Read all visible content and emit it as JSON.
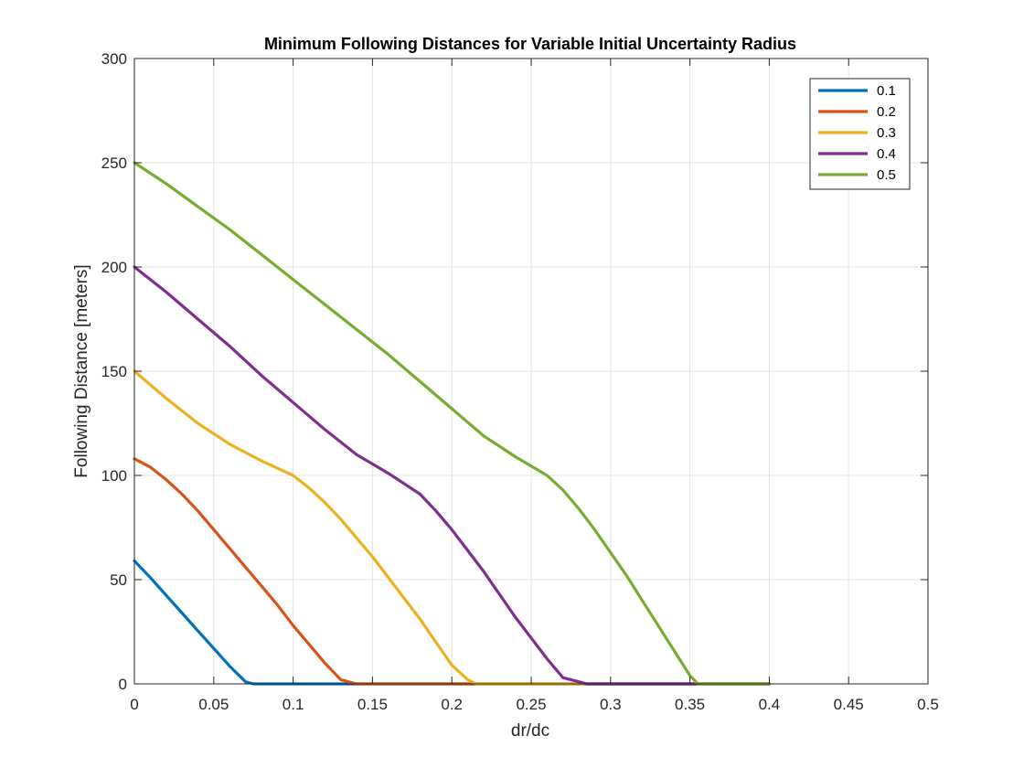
{
  "chart_data": {
    "type": "line",
    "title": "Minimum Following Distances for Variable Initial Uncertainty Radius",
    "xlabel": "dr/dc",
    "ylabel": "Following Distance [meters]",
    "xlim": [
      0,
      0.5
    ],
    "ylim": [
      0,
      300
    ],
    "xticks": [
      0,
      0.05,
      0.1,
      0.15,
      0.2,
      0.25,
      0.3,
      0.35,
      0.4,
      0.45,
      0.5
    ],
    "xtick_labels": [
      "0",
      "0.05",
      "0.1",
      "0.15",
      "0.2",
      "0.25",
      "0.3",
      "0.35",
      "0.4",
      "0.45",
      "0.5"
    ],
    "yticks": [
      0,
      50,
      100,
      150,
      200,
      250,
      300
    ],
    "ytick_labels": [
      "0",
      "50",
      "100",
      "150",
      "200",
      "250",
      "300"
    ],
    "grid": true,
    "legend_position": "top-right",
    "series": [
      {
        "name": "0.1",
        "color": "#0072BD",
        "x": [
          0,
          0.01,
          0.02,
          0.03,
          0.04,
          0.05,
          0.06,
          0.07,
          0.075,
          0.08,
          0.1,
          0.15,
          0.2,
          0.25,
          0.3,
          0.35,
          0.4
        ],
        "y": [
          59,
          51,
          42.5,
          34,
          25.5,
          17,
          8.5,
          1,
          0,
          0,
          0,
          0,
          0,
          0,
          0,
          0,
          0
        ]
      },
      {
        "name": "0.2",
        "color": "#D95319",
        "x": [
          0,
          0.01,
          0.02,
          0.03,
          0.04,
          0.05,
          0.06,
          0.07,
          0.08,
          0.09,
          0.1,
          0.11,
          0.12,
          0.13,
          0.14,
          0.145,
          0.15,
          0.2,
          0.25,
          0.3,
          0.35,
          0.4
        ],
        "y": [
          108,
          104,
          98,
          91,
          83,
          74,
          65,
          56,
          47,
          38,
          28,
          19,
          10,
          2,
          0,
          0,
          0,
          0,
          0,
          0,
          0,
          0
        ]
      },
      {
        "name": "0.3",
        "color": "#EDB120",
        "x": [
          0,
          0.02,
          0.04,
          0.06,
          0.08,
          0.1,
          0.11,
          0.12,
          0.13,
          0.14,
          0.15,
          0.16,
          0.17,
          0.18,
          0.19,
          0.2,
          0.21,
          0.215,
          0.25,
          0.3,
          0.35,
          0.4
        ],
        "y": [
          150,
          137,
          125,
          115,
          107,
          100,
          94,
          87,
          79,
          70,
          61,
          51,
          41,
          31,
          20,
          9,
          2,
          0,
          0,
          0,
          0,
          0
        ]
      },
      {
        "name": "0.4",
        "color": "#7E2F8E",
        "x": [
          0,
          0.02,
          0.04,
          0.06,
          0.08,
          0.1,
          0.12,
          0.14,
          0.16,
          0.18,
          0.19,
          0.2,
          0.21,
          0.22,
          0.23,
          0.24,
          0.25,
          0.26,
          0.27,
          0.28,
          0.285,
          0.3,
          0.35,
          0.4
        ],
        "y": [
          200,
          188,
          175,
          162,
          148,
          135,
          122,
          110,
          101,
          91,
          83,
          74,
          64,
          54,
          43,
          32,
          22,
          12,
          3,
          1,
          0,
          0,
          0,
          0
        ]
      },
      {
        "name": "0.5",
        "color": "#77AC30",
        "x": [
          0,
          0.02,
          0.04,
          0.06,
          0.08,
          0.1,
          0.12,
          0.14,
          0.16,
          0.18,
          0.2,
          0.22,
          0.24,
          0.26,
          0.27,
          0.28,
          0.29,
          0.3,
          0.31,
          0.32,
          0.33,
          0.34,
          0.35,
          0.355,
          0.4
        ],
        "y": [
          250,
          240,
          229,
          218,
          206,
          194,
          182,
          170,
          158,
          145,
          132,
          119,
          109,
          100,
          93,
          84,
          74,
          63,
          52,
          40,
          28,
          16,
          4,
          0,
          0
        ]
      }
    ]
  }
}
